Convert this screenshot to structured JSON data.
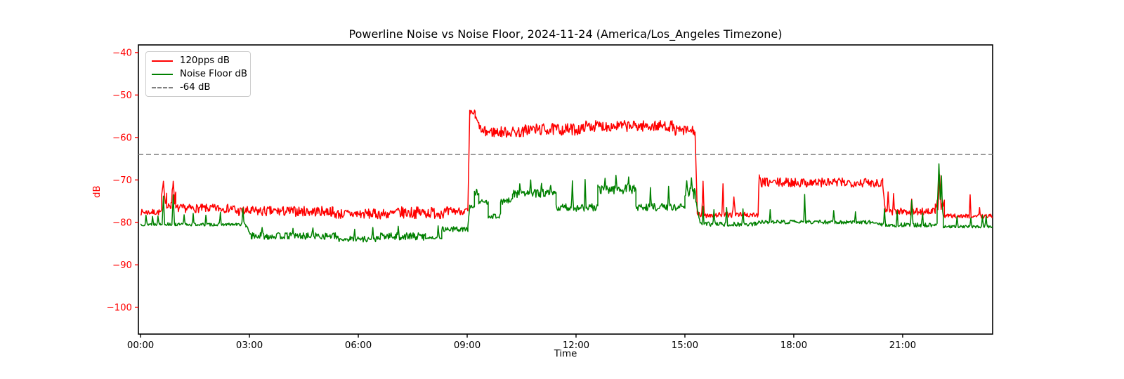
{
  "chart_data": {
    "type": "line",
    "title": "Powerline Noise vs Noise Floor, 2024-11-24 (America/Los_Angeles Timezone)",
    "xlabel": "Time",
    "ylabel": "dB",
    "x_unit": "hours",
    "xlim": [
      -0.06,
      23.48
    ],
    "ylim": [
      -106.3,
      -38.2
    ],
    "grid": false,
    "colors": {
      "series_120pps": "#ff0000",
      "series_noise_floor": "#008000",
      "threshold": "#808080",
      "y_axis": "#ff0000",
      "x_axis": "#000000",
      "spine": "#000000",
      "background": "#ffffff",
      "legend_border": "#cccccc"
    },
    "x_ticks": [
      {
        "t": 0,
        "label": "00:00"
      },
      {
        "t": 3,
        "label": "03:00"
      },
      {
        "t": 6,
        "label": "06:00"
      },
      {
        "t": 9,
        "label": "09:00"
      },
      {
        "t": 12,
        "label": "12:00"
      },
      {
        "t": 15,
        "label": "15:00"
      },
      {
        "t": 18,
        "label": "18:00"
      },
      {
        "t": 21,
        "label": "21:00"
      }
    ],
    "y_ticks": [
      {
        "v": -40,
        "label": "−40"
      },
      {
        "v": -50,
        "label": "−50"
      },
      {
        "v": -60,
        "label": "−60"
      },
      {
        "v": -70,
        "label": "−70"
      },
      {
        "v": -80,
        "label": "−80"
      },
      {
        "v": -90,
        "label": "−90"
      },
      {
        "v": -100,
        "label": "−100"
      }
    ],
    "threshold": {
      "value": -64,
      "label": "-64 dB",
      "color": "#808080",
      "linestyle": "dashed"
    },
    "legend": {
      "position": "upper-left",
      "entries": [
        {
          "label": "120pps dB",
          "color": "#ff0000",
          "style": "solid"
        },
        {
          "label": "Noise Floor dB",
          "color": "#008000",
          "style": "solid"
        },
        {
          "label": "-64 dB",
          "color": "#808080",
          "style": "dashed"
        }
      ]
    },
    "render": {
      "sample_step_hours": 0.018,
      "line_width": 1.5,
      "dash_pattern": "7 4"
    },
    "series": [
      {
        "name": "120pps dB",
        "color": "#ff0000",
        "seed": 7,
        "segments": [
          {
            "t0": 0.0,
            "t1": 0.58,
            "level": -77.6,
            "noise": 0.7
          },
          {
            "t0": 0.58,
            "t1": 0.72,
            "level": -74.0,
            "noise": 1.6
          },
          {
            "t0": 0.72,
            "t1": 0.84,
            "level": -76.4,
            "noise": 0.9
          },
          {
            "t0": 0.84,
            "t1": 0.97,
            "level": -74.2,
            "noise": 1.6
          },
          {
            "t0": 0.97,
            "t1": 2.6,
            "level": -76.7,
            "noise": 1.0
          },
          {
            "t0": 2.6,
            "t1": 5.3,
            "level": -77.4,
            "noise": 1.2
          },
          {
            "t0": 5.3,
            "t1": 7.0,
            "level": -78.0,
            "noise": 1.2
          },
          {
            "t0": 7.0,
            "t1": 8.55,
            "level": -77.7,
            "noise": 1.4
          },
          {
            "t0": 8.55,
            "t1": 9.02,
            "level": -77.3,
            "noise": 0.9
          },
          {
            "t0": 9.02,
            "t1": 9.07,
            "from": -77.0,
            "to": -54.5,
            "noise": 0.3
          },
          {
            "t0": 9.07,
            "t1": 9.22,
            "level": -54.2,
            "noise": 0.7
          },
          {
            "t0": 9.22,
            "t1": 9.42,
            "from": -55.2,
            "to": -58.8,
            "noise": 0.8
          },
          {
            "t0": 9.42,
            "t1": 10.6,
            "level": -58.7,
            "noise": 1.3
          },
          {
            "t0": 10.6,
            "t1": 12.2,
            "level": -58.1,
            "noise": 1.4
          },
          {
            "t0": 12.2,
            "t1": 14.7,
            "level": -57.3,
            "noise": 1.3
          },
          {
            "t0": 14.7,
            "t1": 15.28,
            "level": -58.4,
            "noise": 1.2
          },
          {
            "t0": 15.28,
            "t1": 15.34,
            "from": -59.0,
            "to": -77.3,
            "noise": 0.3
          },
          {
            "t0": 15.34,
            "t1": 17.02,
            "level": -78.2,
            "noise": 0.7
          },
          {
            "t0": 17.02,
            "t1": 17.07,
            "from": -77.5,
            "to": -70.0,
            "noise": 0.4
          },
          {
            "t0": 17.07,
            "t1": 20.45,
            "level": -70.6,
            "noise": 1.1
          },
          {
            "t0": 20.45,
            "t1": 20.52,
            "from": -70.8,
            "to": -77.0,
            "noise": 0.4
          },
          {
            "t0": 20.52,
            "t1": 21.9,
            "level": -77.4,
            "noise": 0.9
          },
          {
            "t0": 21.9,
            "t1": 22.15,
            "level": -76.0,
            "noise": 1.3
          },
          {
            "t0": 22.15,
            "t1": 23.48,
            "level": -78.5,
            "noise": 0.5
          }
        ],
        "spikes": [
          {
            "t": 0.63,
            "peak": -70.3,
            "w": 0.07
          },
          {
            "t": 0.9,
            "peak": -70.3,
            "w": 0.07
          },
          {
            "t": 15.5,
            "peak": -70.3,
            "w": 0.06
          },
          {
            "t": 16.05,
            "peak": -70.9,
            "w": 0.05
          },
          {
            "t": 16.35,
            "peak": -74.0,
            "w": 0.08
          },
          {
            "t": 17.05,
            "peak": -68.8,
            "w": 0.06
          },
          {
            "t": 20.6,
            "peak": -72.8,
            "w": 0.06
          },
          {
            "t": 20.75,
            "peak": -73.2,
            "w": 0.05
          },
          {
            "t": 21.25,
            "peak": -74.5,
            "w": 0.05
          },
          {
            "t": 22.02,
            "peak": -68.8,
            "w": 0.08
          },
          {
            "t": 22.86,
            "peak": -73.5,
            "w": 0.05
          },
          {
            "t": 23.12,
            "peak": -76.5,
            "w": 0.05
          }
        ]
      },
      {
        "name": "Noise Floor dB",
        "color": "#008000",
        "seed": 13,
        "segments": [
          {
            "t0": 0.0,
            "t1": 0.97,
            "level": -80.4,
            "noise": 0.4
          },
          {
            "t0": 0.97,
            "t1": 2.9,
            "level": -80.5,
            "noise": 0.35
          },
          {
            "t0": 2.9,
            "t1": 3.05,
            "from": -80.8,
            "to": -83.0,
            "noise": 0.4
          },
          {
            "t0": 3.05,
            "t1": 5.4,
            "level": -83.2,
            "noise": 0.8
          },
          {
            "t0": 5.4,
            "t1": 6.6,
            "level": -83.9,
            "noise": 0.7
          },
          {
            "t0": 6.6,
            "t1": 7.85,
            "level": -83.3,
            "noise": 0.9
          },
          {
            "t0": 7.85,
            "t1": 8.3,
            "level": -83.6,
            "noise": 0.3
          },
          {
            "t0": 8.3,
            "t1": 9.02,
            "level": -81.6,
            "noise": 0.6
          },
          {
            "t0": 9.02,
            "t1": 9.07,
            "from": -81.0,
            "to": -76.6,
            "noise": 0.3
          },
          {
            "t0": 9.07,
            "t1": 9.2,
            "level": -76.2,
            "noise": 0.5
          },
          {
            "t0": 9.2,
            "t1": 9.32,
            "level": -73.3,
            "noise": 0.7
          },
          {
            "t0": 9.32,
            "t1": 9.58,
            "level": -75.2,
            "noise": 0.6
          },
          {
            "t0": 9.58,
            "t1": 9.92,
            "level": -78.5,
            "noise": 0.6
          },
          {
            "t0": 9.92,
            "t1": 10.25,
            "level": -75.0,
            "noise": 0.8
          },
          {
            "t0": 10.25,
            "t1": 11.45,
            "level": -73.2,
            "noise": 1.0
          },
          {
            "t0": 11.45,
            "t1": 12.6,
            "level": -76.5,
            "noise": 0.9
          },
          {
            "t0": 12.6,
            "t1": 13.65,
            "level": -72.2,
            "noise": 1.1
          },
          {
            "t0": 13.65,
            "t1": 15.0,
            "level": -76.4,
            "noise": 0.9
          },
          {
            "t0": 15.0,
            "t1": 15.3,
            "level": -73.5,
            "noise": 1.5
          },
          {
            "t0": 15.3,
            "t1": 15.42,
            "from": -75.0,
            "to": -80.0,
            "noise": 0.5
          },
          {
            "t0": 15.42,
            "t1": 17.02,
            "level": -80.4,
            "noise": 0.5
          },
          {
            "t0": 17.02,
            "t1": 20.3,
            "level": -79.9,
            "noise": 0.45
          },
          {
            "t0": 20.3,
            "t1": 21.95,
            "level": -80.6,
            "noise": 0.5
          },
          {
            "t0": 21.95,
            "t1": 22.12,
            "level": -78.0,
            "noise": 1.0
          },
          {
            "t0": 22.12,
            "t1": 23.48,
            "level": -81.0,
            "noise": 0.3
          }
        ],
        "spikes": [
          {
            "t": 0.15,
            "peak": -78.3,
            "w": 0.05
          },
          {
            "t": 0.33,
            "peak": -78.6,
            "w": 0.05
          },
          {
            "t": 0.48,
            "peak": -78.5,
            "w": 0.05
          },
          {
            "t": 0.63,
            "peak": -73.8,
            "w": 0.07
          },
          {
            "t": 0.9,
            "peak": -73.5,
            "w": 0.07
          },
          {
            "t": 1.2,
            "peak": -78.2,
            "w": 0.05
          },
          {
            "t": 1.45,
            "peak": -77.9,
            "w": 0.05
          },
          {
            "t": 1.8,
            "peak": -78.3,
            "w": 0.05
          },
          {
            "t": 2.2,
            "peak": -77.6,
            "w": 0.05
          },
          {
            "t": 2.82,
            "peak": -76.6,
            "w": 0.06
          },
          {
            "t": 3.35,
            "peak": -81.2,
            "w": 0.05
          },
          {
            "t": 4.2,
            "peak": -81.4,
            "w": 0.05
          },
          {
            "t": 4.75,
            "peak": -81.3,
            "w": 0.05
          },
          {
            "t": 5.9,
            "peak": -81.6,
            "w": 0.05
          },
          {
            "t": 6.4,
            "peak": -81.2,
            "w": 0.05
          },
          {
            "t": 7.1,
            "peak": -80.9,
            "w": 0.05
          },
          {
            "t": 8.2,
            "peak": -80.8,
            "w": 0.05
          },
          {
            "t": 9.26,
            "peak": -72.2,
            "w": 0.06
          },
          {
            "t": 10.45,
            "peak": -70.9,
            "w": 0.05
          },
          {
            "t": 10.75,
            "peak": -70.0,
            "w": 0.05
          },
          {
            "t": 11.05,
            "peak": -70.8,
            "w": 0.05
          },
          {
            "t": 11.3,
            "peak": -71.3,
            "w": 0.05
          },
          {
            "t": 11.9,
            "peak": -70.2,
            "w": 0.05
          },
          {
            "t": 12.25,
            "peak": -69.9,
            "w": 0.05
          },
          {
            "t": 12.8,
            "peak": -69.6,
            "w": 0.05
          },
          {
            "t": 13.1,
            "peak": -68.9,
            "w": 0.05
          },
          {
            "t": 13.45,
            "peak": -69.3,
            "w": 0.05
          },
          {
            "t": 14.05,
            "peak": -71.8,
            "w": 0.05
          },
          {
            "t": 14.55,
            "peak": -71.5,
            "w": 0.05
          },
          {
            "t": 15.05,
            "peak": -70.2,
            "w": 0.09
          },
          {
            "t": 15.18,
            "peak": -69.5,
            "w": 0.09
          },
          {
            "t": 15.5,
            "peak": -76.2,
            "w": 0.05
          },
          {
            "t": 15.8,
            "peak": -77.0,
            "w": 0.05
          },
          {
            "t": 16.15,
            "peak": -76.5,
            "w": 0.05
          },
          {
            "t": 16.6,
            "peak": -76.8,
            "w": 0.05
          },
          {
            "t": 17.35,
            "peak": -77.0,
            "w": 0.05
          },
          {
            "t": 18.3,
            "peak": -73.4,
            "w": 0.05
          },
          {
            "t": 19.1,
            "peak": -77.2,
            "w": 0.05
          },
          {
            "t": 19.7,
            "peak": -77.5,
            "w": 0.05
          },
          {
            "t": 20.5,
            "peak": -76.8,
            "w": 0.05
          },
          {
            "t": 20.85,
            "peak": -77.2,
            "w": 0.05
          },
          {
            "t": 21.25,
            "peak": -74.8,
            "w": 0.06
          },
          {
            "t": 21.55,
            "peak": -77.8,
            "w": 0.05
          },
          {
            "t": 22.0,
            "peak": -66.2,
            "w": 0.1
          },
          {
            "t": 22.07,
            "peak": -69.0,
            "w": 0.06
          },
          {
            "t": 22.5,
            "peak": -78.6,
            "w": 0.05
          },
          {
            "t": 22.88,
            "peak": -78.9,
            "w": 0.05
          },
          {
            "t": 23.2,
            "peak": -78.3,
            "w": 0.05
          },
          {
            "t": 23.3,
            "peak": -78.5,
            "w": 0.05
          }
        ]
      }
    ]
  }
}
